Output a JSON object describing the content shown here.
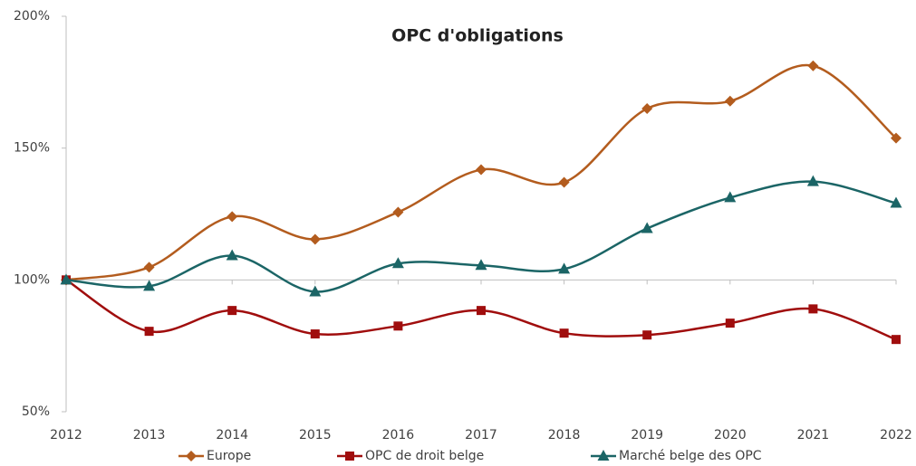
{
  "chart_data": {
    "type": "line",
    "title": "OPC d'obligations",
    "categories": [
      "2012",
      "2013",
      "2014",
      "2015",
      "2016",
      "2017",
      "2018",
      "2019",
      "2020",
      "2021",
      "2022"
    ],
    "series": [
      {
        "name": "Europe",
        "color": "#b35c1e",
        "marker": "diamond",
        "values": [
          100,
          104.8,
          124,
          115.4,
          125.7,
          141.8,
          137,
          165,
          167.8,
          181.2,
          153.8
        ]
      },
      {
        "name": "OPC de droit belge",
        "color": "#a00d0d",
        "marker": "square",
        "values": [
          100,
          80.5,
          88.4,
          79.5,
          82.5,
          88.4,
          79.8,
          79.1,
          83.6,
          89,
          77.4
        ]
      },
      {
        "name": "Marché belge des OPC",
        "color": "#1b6566",
        "marker": "triangle",
        "values": [
          100,
          97.6,
          109.2,
          95.5,
          106.2,
          105.5,
          104.1,
          119.5,
          131.2,
          137.3,
          129.1
        ]
      }
    ],
    "ylim": [
      50,
      200
    ],
    "yticks": [
      {
        "value": 50,
        "label": "50%"
      },
      {
        "value": 100,
        "label": "100%"
      },
      {
        "value": 150,
        "label": "150%"
      },
      {
        "value": 200,
        "label": "200%"
      }
    ],
    "x_axis_crosses": 100
  }
}
